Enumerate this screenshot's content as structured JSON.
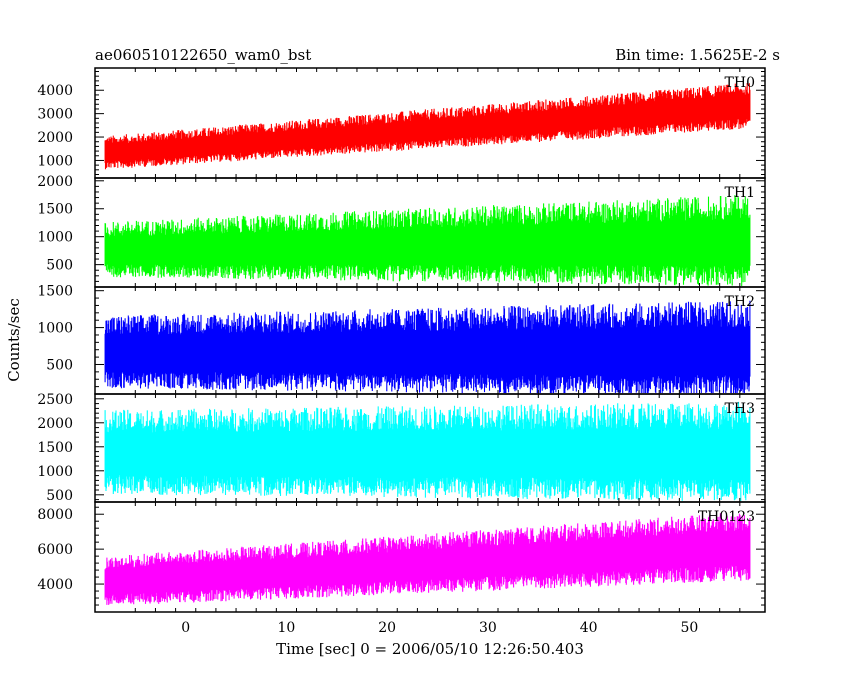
{
  "chart_data": {
    "type": "line",
    "title": "ae060510122650_wam0_bst",
    "subtitle": "Bin time: 1.5625E-2 s",
    "xlabel": "Time [sec] 0 = 2006/05/10 12:26:50.403",
    "ylabel": "Counts/sec",
    "xlim": [
      -9,
      57.5
    ],
    "x_ticks": [
      0,
      10,
      20,
      30,
      40,
      50
    ],
    "x_data_range": [
      -8,
      56
    ],
    "bin_time": 0.015625,
    "grid": false,
    "panels": [
      {
        "name": "TH0",
        "color": "#ff0000",
        "ylim": [
          250,
          4950
        ],
        "y_ticks": [
          1000,
          2000,
          3000,
          4000
        ],
        "trend_start": 1300,
        "trend_end": 3300,
        "spread_low": 650,
        "spread_high": 900
      },
      {
        "name": "TH1",
        "color": "#00ff00",
        "ylim": [
          100,
          2050
        ],
        "y_ticks": [
          500,
          1000,
          1500,
          2000
        ],
        "trend_start": 750,
        "trend_end": 900,
        "spread_low": 450,
        "spread_high": 750
      },
      {
        "name": "TH2",
        "color": "#0000ff",
        "ylim": [
          100,
          1550
        ],
        "y_ticks": [
          500,
          1000,
          1500
        ],
        "trend_start": 650,
        "trend_end": 680,
        "spread_low": 450,
        "spread_high": 600
      },
      {
        "name": "TH3",
        "color": "#00ffff",
        "ylim": [
          350,
          2600
        ],
        "y_ticks": [
          500,
          1000,
          1500,
          2000,
          2500
        ],
        "trend_start": 1350,
        "trend_end": 1350,
        "spread_low": 800,
        "spread_high": 950
      },
      {
        "name": "TH0123",
        "color": "#ff00ff",
        "ylim": [
          2400,
          8700
        ],
        "y_ticks": [
          4000,
          6000,
          8000
        ],
        "trend_start": 4100,
        "trend_end": 6100,
        "spread_low": 1300,
        "spread_high": 1800
      }
    ]
  }
}
